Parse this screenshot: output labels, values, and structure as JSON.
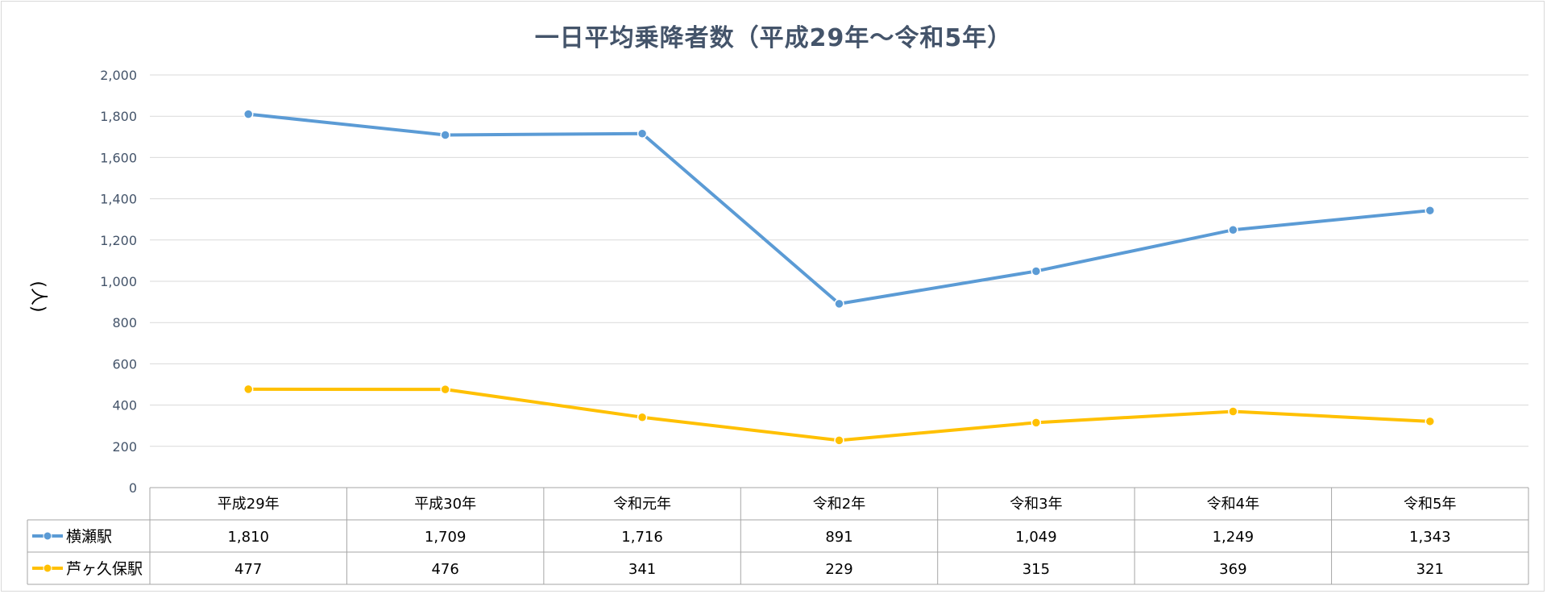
{
  "chart_data": {
    "type": "line",
    "title": "一日平均乗降者数（平成29年～令和5年）",
    "ylabel": "(人)",
    "xlabel": "",
    "ylim": [
      0,
      2000
    ],
    "yticks": [
      0,
      200,
      400,
      600,
      800,
      1000,
      1200,
      1400,
      1600,
      1800,
      2000
    ],
    "ytick_labels": [
      "0",
      "200",
      "400",
      "600",
      "800",
      "1,000",
      "1,200",
      "1,400",
      "1,600",
      "1,800",
      "2,000"
    ],
    "grid": true,
    "legend": "data-table-left",
    "categories": [
      "平成29年",
      "平成30年",
      "令和元年",
      "令和2年",
      "令和3年",
      "令和4年",
      "令和5年"
    ],
    "series": [
      {
        "name": "横瀬駅",
        "color": "#5b9bd5",
        "values": [
          1810,
          1709,
          1716,
          891,
          1049,
          1249,
          1343
        ],
        "labels": [
          "1,810",
          "1,709",
          "1,716",
          "891",
          "1,049",
          "1,249",
          "1,343"
        ]
      },
      {
        "name": "芦ヶ久保駅",
        "color": "#ffc000",
        "values": [
          477,
          476,
          341,
          229,
          315,
          369,
          321
        ],
        "labels": [
          "477",
          "476",
          "341",
          "229",
          "315",
          "369",
          "321"
        ]
      }
    ]
  }
}
